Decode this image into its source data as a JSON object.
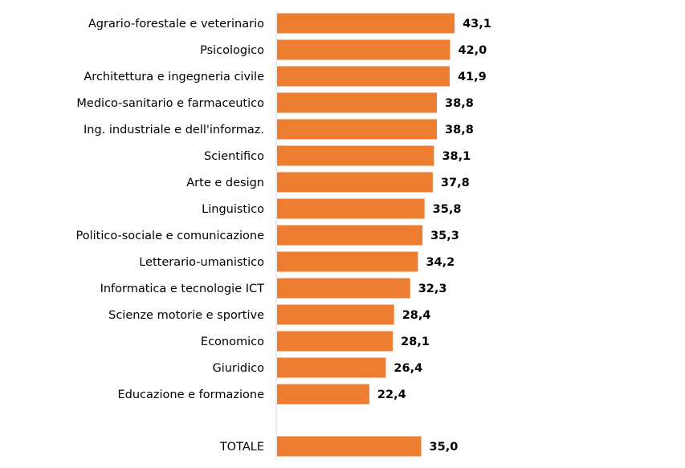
{
  "chart_data": {
    "type": "bar",
    "orientation": "horizontal",
    "categories": [
      "Agrario-forestale e veterinario",
      "Psicologico",
      "Architettura e ingegneria civile",
      "Medico-sanitario e farmaceutico",
      "Ing. industriale e dell'informaz.",
      "Scientifico",
      "Arte e design",
      "Linguistico",
      "Politico-sociale e comunicazione",
      "Letterario-umanistico",
      "Informatica e tecnologie ICT",
      "Scienze motorie e sportive",
      "Economico",
      "Giuridico",
      "Educazione e formazione",
      "TOTALE"
    ],
    "values": [
      43.1,
      42.0,
      41.9,
      38.8,
      38.8,
      38.1,
      37.8,
      35.8,
      35.3,
      34.2,
      32.3,
      28.4,
      28.1,
      26.4,
      22.4,
      35.0
    ],
    "value_labels": [
      "43,1",
      "42,0",
      "41,9",
      "38,8",
      "38,8",
      "38,1",
      "37,8",
      "35,8",
      "35,3",
      "34,2",
      "32,3",
      "28,4",
      "28,1",
      "26,4",
      "22,4",
      "35,0"
    ],
    "bar_color": "#ED7D31",
    "axis_color": "#D9D9D9",
    "grid": false,
    "legend": "none",
    "title": "",
    "xlabel": "",
    "ylabel": ""
  }
}
